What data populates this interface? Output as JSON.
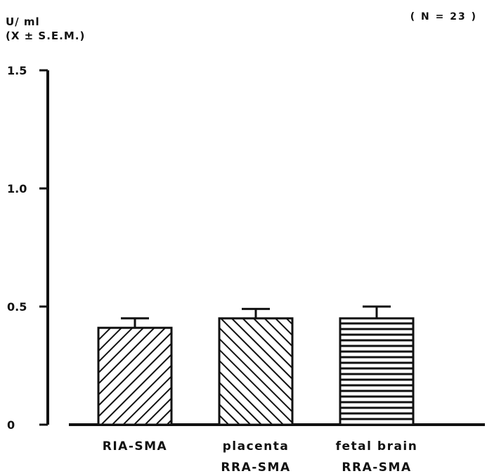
{
  "chart_data": {
    "type": "bar",
    "ylabel_unit": "U/ ml",
    "ylabel_stat": "(X ± S.E.M.)",
    "annotation": "( N = 23 )",
    "ylim": [
      0,
      1.5
    ],
    "yticks": [
      0,
      0.5,
      1.0,
      1.5
    ],
    "ytick_labels": [
      "0",
      "0.5",
      "1.0",
      "1.5"
    ],
    "categories": [
      [
        "RIA-SMA"
      ],
      [
        "placenta",
        "RRA-SMA"
      ],
      [
        "fetal brain",
        "RRA-SMA"
      ]
    ],
    "values": [
      0.41,
      0.45,
      0.45
    ],
    "errors": [
      0.04,
      0.04,
      0.05
    ],
    "hatch": [
      "diagonal-up",
      "diagonal-down",
      "horizontal"
    ],
    "bar_fill": "#ffffff",
    "ink": "#111111"
  }
}
